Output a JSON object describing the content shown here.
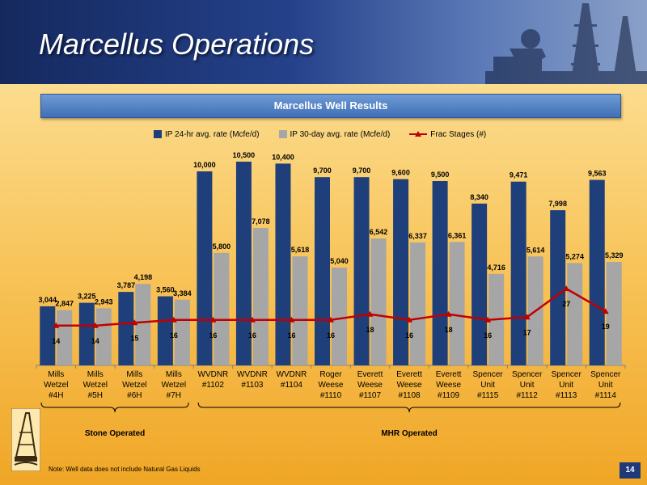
{
  "slide": {
    "title": "Marcellus Operations",
    "page_number": "14",
    "note": "Note: Well data does not include Natural Gas Liquids"
  },
  "chart_data": {
    "type": "bar",
    "title": "Marcellus Well Results",
    "categories": [
      [
        "Mills",
        "Wetzel",
        "#4H"
      ],
      [
        "Mills",
        "Wetzel",
        "#5H"
      ],
      [
        "Mills",
        "Wetzel",
        "#6H"
      ],
      [
        "Mills",
        "Wetzel",
        "#7H"
      ],
      [
        "WVDNR",
        "#1102"
      ],
      [
        "WVDNR",
        "#1103"
      ],
      [
        "WVDNR",
        "#1104"
      ],
      [
        "Roger",
        "Weese",
        "#1110"
      ],
      [
        "Everett",
        "Weese",
        "#1107"
      ],
      [
        "Everett",
        "Weese",
        "#1108"
      ],
      [
        "Everett",
        "Weese",
        "#1109"
      ],
      [
        "Spencer",
        "Unit",
        "#1115"
      ],
      [
        "Spencer",
        "Unit",
        "#1112"
      ],
      [
        "Spencer",
        "Unit",
        "#1113"
      ],
      [
        "Spencer",
        "Unit",
        "#1114"
      ]
    ],
    "series": [
      {
        "name": "IP 24-hr avg. rate (Mcfe/d)",
        "color": "#1f3f7a",
        "values": [
          3044,
          3225,
          3787,
          3560,
          10000,
          10500,
          10400,
          9700,
          9700,
          9600,
          9500,
          8340,
          9471,
          7998,
          9563
        ],
        "labels": [
          "3,044",
          "3,225",
          "3,787",
          "3,560",
          "10,000",
          "10,500",
          "10,400",
          "9,700",
          "9,700",
          "9,600",
          "9,500",
          "8,340",
          "9,471",
          "7,998",
          "9,563"
        ]
      },
      {
        "name": "IP 30-day avg. rate (Mcfe/d)",
        "color": "#a6a6a6",
        "values": [
          2847,
          2943,
          4198,
          3384,
          5800,
          7078,
          5618,
          5040,
          6542,
          6337,
          6361,
          4716,
          5614,
          5274,
          5329
        ],
        "labels": [
          "2,847",
          "2,943",
          "4,198",
          "3,384",
          "5,800",
          "7,078",
          "5,618",
          "5,040",
          "6,542",
          "6,337",
          "6,361",
          "4,716",
          "5,614",
          "5,274",
          "5,329"
        ]
      },
      {
        "name": "Frac Stages (#)",
        "color": "#c00000",
        "type": "line",
        "values": [
          14,
          14,
          15,
          16,
          16,
          16,
          16,
          16,
          18,
          16,
          18,
          16,
          17,
          27,
          19
        ],
        "labels": [
          "14",
          "14",
          "15",
          "16",
          "16",
          "16",
          "16",
          "16",
          "18",
          "16",
          "18",
          "16",
          "17",
          "27",
          "19"
        ]
      }
    ],
    "legend_position": "top",
    "groups": [
      {
        "label": "Stone Operated",
        "from": 0,
        "to": 3
      },
      {
        "label": "MHR Operated",
        "from": 4,
        "to": 14
      }
    ]
  }
}
